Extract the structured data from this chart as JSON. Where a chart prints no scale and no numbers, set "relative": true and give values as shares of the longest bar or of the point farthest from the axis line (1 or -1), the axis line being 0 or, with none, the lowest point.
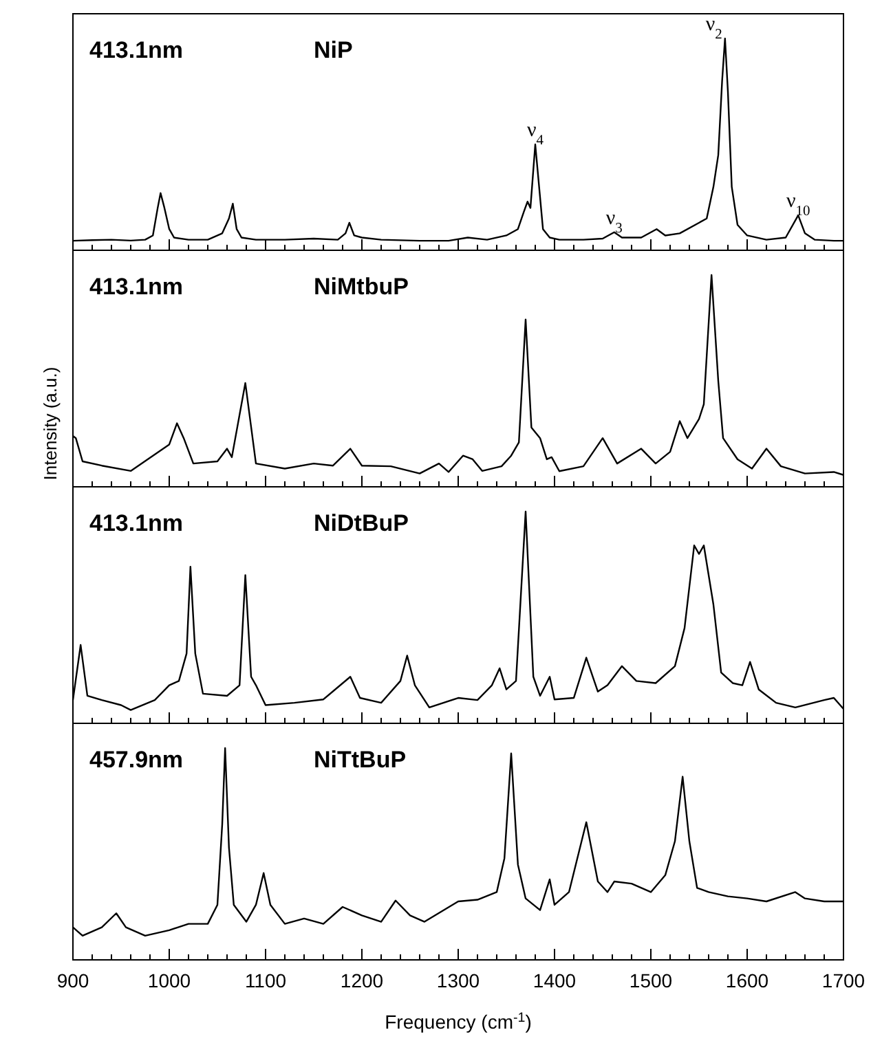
{
  "chart_data": [
    {
      "type": "line",
      "relative": true,
      "tick_labels": false,
      "xlim": [
        900,
        1700
      ],
      "xticks": [
        900,
        {
          "value": 920,
          "label": null
        },
        {
          "value": 940,
          "label": null
        },
        {
          "value": 960,
          "label": null
        },
        {
          "value": 980,
          "label": null
        },
        1000,
        {
          "value": 1020,
          "label": null
        },
        {
          "value": 1040,
          "label": null
        },
        {
          "value": 1060,
          "label": null
        },
        {
          "value": 1080,
          "label": null
        },
        1100,
        {
          "value": 1120,
          "label": null
        },
        {
          "value": 1140,
          "label": null
        },
        {
          "value": 1160,
          "label": null
        },
        {
          "value": 1180,
          "label": null
        },
        1200,
        {
          "value": 1220,
          "label": null
        },
        {
          "value": 1240,
          "label": null
        },
        {
          "value": 1260,
          "label": null
        },
        {
          "value": 1280,
          "label": null
        },
        1300,
        {
          "value": 1320,
          "label": null
        },
        {
          "value": 1340,
          "label": null
        },
        {
          "value": 1360,
          "label": null
        },
        {
          "value": 1380,
          "label": null
        },
        1400,
        {
          "value": 1420,
          "label": null
        },
        {
          "value": 1440,
          "label": null
        },
        {
          "value": 1460,
          "label": null
        },
        {
          "value": 1480,
          "label": null
        },
        1500,
        {
          "value": 1520,
          "label": null
        },
        {
          "value": 1540,
          "label": null
        },
        {
          "value": 1560,
          "label": null
        },
        {
          "value": 1580,
          "label": null
        },
        1600,
        {
          "value": 1620,
          "label": null
        },
        {
          "value": 1640,
          "label": null
        },
        {
          "value": 1660,
          "label": null
        },
        {
          "value": 1680,
          "label": null
        },
        1700
      ],
      "annotations": [
        "413.1nm",
        "NiP",
        {
          "text": "ν$_{4}$",
          "x": 1380,
          "y": 0.5
        },
        {
          "text": "ν$_{3}$",
          "x": 1462,
          "y": 0.085
        },
        {
          "text": "ν$_{2}$",
          "x": 1577,
          "y": 1
        },
        {
          "text": "ν$_{10}$",
          "x": 1653,
          "y": 0.165
        }
      ],
      "x": [
        900,
        920,
        940,
        960,
        975,
        983,
        988,
        991,
        995,
        1000,
        1005,
        1020,
        1040,
        1055,
        1062,
        1066,
        1070,
        1075,
        1090,
        1120,
        1150,
        1175,
        1183,
        1187,
        1192,
        1200,
        1220,
        1260,
        1290,
        1310,
        1330,
        1350,
        1362,
        1368,
        1372,
        1375,
        1380,
        1384,
        1388,
        1395,
        1405,
        1430,
        1450,
        1462,
        1470,
        1490,
        1506,
        1515,
        1530,
        1550,
        1558,
        1565,
        1570,
        1574,
        1577,
        1580,
        1584,
        1590,
        1600,
        1620,
        1640,
        1653,
        1660,
        1670,
        1690,
        1700
      ],
      "series": [
        {
          "color": "#000000",
          "values": [
            0.045,
            0.048,
            0.05,
            0.046,
            0.05,
            0.07,
            0.2,
            0.27,
            0.2,
            0.1,
            0.06,
            0.05,
            0.05,
            0.08,
            0.15,
            0.22,
            0.1,
            0.06,
            0.05,
            0.05,
            0.055,
            0.05,
            0.08,
            0.13,
            0.07,
            0.06,
            0.05,
            0.045,
            0.045,
            0.06,
            0.05,
            0.07,
            0.1,
            0.18,
            0.23,
            0.2,
            0.5,
            0.3,
            0.1,
            0.06,
            0.05,
            0.05,
            0.055,
            0.085,
            0.06,
            0.06,
            0.1,
            0.07,
            0.08,
            0.13,
            0.15,
            0.3,
            0.45,
            0.8,
            1,
            0.75,
            0.3,
            0.12,
            0.07,
            0.05,
            0.06,
            0.165,
            0.08,
            0.05,
            0.045,
            0.045
          ]
        }
      ]
    },
    {
      "type": "line",
      "relative": true,
      "tick_labels": false,
      "xlim": [
        900,
        1700
      ],
      "xticks": [
        900,
        {
          "value": 920,
          "label": null
        },
        {
          "value": 940,
          "label": null
        },
        {
          "value": 960,
          "label": null
        },
        {
          "value": 980,
          "label": null
        },
        1000,
        {
          "value": 1020,
          "label": null
        },
        {
          "value": 1040,
          "label": null
        },
        {
          "value": 1060,
          "label": null
        },
        {
          "value": 1080,
          "label": null
        },
        1100,
        {
          "value": 1120,
          "label": null
        },
        {
          "value": 1140,
          "label": null
        },
        {
          "value": 1160,
          "label": null
        },
        {
          "value": 1180,
          "label": null
        },
        1200,
        {
          "value": 1220,
          "label": null
        },
        {
          "value": 1240,
          "label": null
        },
        {
          "value": 1260,
          "label": null
        },
        {
          "value": 1280,
          "label": null
        },
        1300,
        {
          "value": 1320,
          "label": null
        },
        {
          "value": 1340,
          "label": null
        },
        {
          "value": 1360,
          "label": null
        },
        {
          "value": 1380,
          "label": null
        },
        1400,
        {
          "value": 1420,
          "label": null
        },
        {
          "value": 1440,
          "label": null
        },
        {
          "value": 1460,
          "label": null
        },
        {
          "value": 1480,
          "label": null
        },
        1500,
        {
          "value": 1520,
          "label": null
        },
        {
          "value": 1540,
          "label": null
        },
        {
          "value": 1560,
          "label": null
        },
        {
          "value": 1580,
          "label": null
        },
        1600,
        {
          "value": 1620,
          "label": null
        },
        {
          "value": 1640,
          "label": null
        },
        {
          "value": 1660,
          "label": null
        },
        {
          "value": 1680,
          "label": null
        },
        1700
      ],
      "ylabel": "Intensity (a.u.)",
      "annotations": [
        "413.1nm",
        "NiMtbuP"
      ],
      "x": [
        900,
        903,
        910,
        930,
        960,
        1000,
        1008,
        1015,
        1025,
        1050,
        1060,
        1065,
        1079,
        1090,
        1120,
        1150,
        1170,
        1188,
        1200,
        1230,
        1260,
        1280,
        1290,
        1305,
        1315,
        1325,
        1345,
        1355,
        1363,
        1370,
        1376,
        1385,
        1392,
        1397,
        1405,
        1430,
        1450,
        1465,
        1490,
        1505,
        1520,
        1530,
        1538,
        1550,
        1555,
        1563,
        1570,
        1575,
        1590,
        1605,
        1620,
        1635,
        1660,
        1690,
        1700
      ],
      "series": [
        {
          "color": "#000000",
          "values": [
            0.24,
            0.23,
            0.12,
            0.1,
            0.075,
            0.2,
            0.3,
            0.23,
            0.11,
            0.12,
            0.18,
            0.14,
            0.49,
            0.11,
            0.086,
            0.11,
            0.1,
            0.18,
            0.1,
            0.097,
            0.063,
            0.11,
            0.07,
            0.147,
            0.13,
            0.075,
            0.097,
            0.147,
            0.21,
            0.79,
            0.28,
            0.23,
            0.13,
            0.14,
            0.074,
            0.097,
            0.23,
            0.11,
            0.18,
            0.11,
            0.165,
            0.31,
            0.23,
            0.32,
            0.39,
            1,
            0.5,
            0.23,
            0.13,
            0.086,
            0.18,
            0.097,
            0.063,
            0.07,
            0.056
          ]
        }
      ]
    },
    {
      "type": "line",
      "relative": true,
      "tick_labels": false,
      "xlim": [
        900,
        1700
      ],
      "xticks": [
        900,
        {
          "value": 920,
          "label": null
        },
        {
          "value": 940,
          "label": null
        },
        {
          "value": 960,
          "label": null
        },
        {
          "value": 980,
          "label": null
        },
        1000,
        {
          "value": 1020,
          "label": null
        },
        {
          "value": 1040,
          "label": null
        },
        {
          "value": 1060,
          "label": null
        },
        {
          "value": 1080,
          "label": null
        },
        1100,
        {
          "value": 1120,
          "label": null
        },
        {
          "value": 1140,
          "label": null
        },
        {
          "value": 1160,
          "label": null
        },
        {
          "value": 1180,
          "label": null
        },
        1200,
        {
          "value": 1220,
          "label": null
        },
        {
          "value": 1240,
          "label": null
        },
        {
          "value": 1260,
          "label": null
        },
        {
          "value": 1280,
          "label": null
        },
        1300,
        {
          "value": 1320,
          "label": null
        },
        {
          "value": 1340,
          "label": null
        },
        {
          "value": 1360,
          "label": null
        },
        {
          "value": 1380,
          "label": null
        },
        1400,
        {
          "value": 1420,
          "label": null
        },
        {
          "value": 1440,
          "label": null
        },
        {
          "value": 1460,
          "label": null
        },
        {
          "value": 1480,
          "label": null
        },
        1500,
        {
          "value": 1520,
          "label": null
        },
        {
          "value": 1540,
          "label": null
        },
        {
          "value": 1560,
          "label": null
        },
        {
          "value": 1580,
          "label": null
        },
        1600,
        {
          "value": 1620,
          "label": null
        },
        {
          "value": 1640,
          "label": null
        },
        {
          "value": 1660,
          "label": null
        },
        {
          "value": 1680,
          "label": null
        },
        1700
      ],
      "annotations": [
        "413.1nm",
        "NiDtBuP"
      ],
      "x": [
        900,
        908,
        915,
        930,
        950,
        960,
        985,
        1000,
        1010,
        1018,
        1022,
        1027,
        1035,
        1060,
        1073,
        1079,
        1085,
        1090,
        1100,
        1130,
        1160,
        1188,
        1198,
        1220,
        1240,
        1247,
        1255,
        1270,
        1300,
        1320,
        1335,
        1343,
        1350,
        1360,
        1370,
        1378,
        1385,
        1395,
        1400,
        1420,
        1433,
        1445,
        1455,
        1470,
        1485,
        1505,
        1525,
        1535,
        1545,
        1550,
        1555,
        1565,
        1573,
        1585,
        1595,
        1603,
        1612,
        1630,
        1650,
        1680,
        1690,
        1700
      ],
      "series": [
        {
          "color": "#000000",
          "values": [
            0.11,
            0.37,
            0.13,
            0.11,
            0.086,
            0.063,
            0.11,
            0.18,
            0.2,
            0.33,
            0.74,
            0.33,
            0.14,
            0.13,
            0.18,
            0.7,
            0.22,
            0.18,
            0.086,
            0.097,
            0.113,
            0.22,
            0.12,
            0.097,
            0.2,
            0.32,
            0.18,
            0.075,
            0.12,
            0.11,
            0.18,
            0.26,
            0.16,
            0.2,
            1,
            0.22,
            0.13,
            0.22,
            0.113,
            0.12,
            0.31,
            0.15,
            0.18,
            0.27,
            0.2,
            0.19,
            0.27,
            0.45,
            0.84,
            0.8,
            0.84,
            0.56,
            0.24,
            0.19,
            0.18,
            0.29,
            0.16,
            0.097,
            0.075,
            0.11,
            0.12,
            0.068
          ]
        }
      ]
    },
    {
      "type": "line",
      "relative": true,
      "tick_labels": "x",
      "xlabel": "Frequency (cm$^{-1}$)",
      "xlim": [
        900,
        1700
      ],
      "xticks": [
        900,
        {
          "value": 920,
          "label": null
        },
        {
          "value": 940,
          "label": null
        },
        {
          "value": 960,
          "label": null
        },
        {
          "value": 980,
          "label": null
        },
        1000,
        {
          "value": 1020,
          "label": null
        },
        {
          "value": 1040,
          "label": null
        },
        {
          "value": 1060,
          "label": null
        },
        {
          "value": 1080,
          "label": null
        },
        1100,
        {
          "value": 1120,
          "label": null
        },
        {
          "value": 1140,
          "label": null
        },
        {
          "value": 1160,
          "label": null
        },
        {
          "value": 1180,
          "label": null
        },
        1200,
        {
          "value": 1220,
          "label": null
        },
        {
          "value": 1240,
          "label": null
        },
        {
          "value": 1260,
          "label": null
        },
        {
          "value": 1280,
          "label": null
        },
        1300,
        {
          "value": 1320,
          "label": null
        },
        {
          "value": 1340,
          "label": null
        },
        {
          "value": 1360,
          "label": null
        },
        {
          "value": 1380,
          "label": null
        },
        1400,
        {
          "value": 1420,
          "label": null
        },
        {
          "value": 1440,
          "label": null
        },
        {
          "value": 1460,
          "label": null
        },
        {
          "value": 1480,
          "label": null
        },
        1500,
        {
          "value": 1520,
          "label": null
        },
        {
          "value": 1540,
          "label": null
        },
        {
          "value": 1560,
          "label": null
        },
        {
          "value": 1580,
          "label": null
        },
        1600,
        {
          "value": 1620,
          "label": null
        },
        {
          "value": 1640,
          "label": null
        },
        {
          "value": 1660,
          "label": null
        },
        {
          "value": 1680,
          "label": null
        },
        1700
      ],
      "annotations": [
        "457.9nm",
        "NiTtBuP"
      ],
      "x": [
        900,
        910,
        930,
        945,
        955,
        975,
        1000,
        1020,
        1040,
        1050,
        1055,
        1058,
        1062,
        1067,
        1080,
        1090,
        1098,
        1105,
        1120,
        1140,
        1160,
        1180,
        1200,
        1220,
        1235,
        1250,
        1265,
        1300,
        1320,
        1340,
        1348,
        1355,
        1362,
        1370,
        1385,
        1395,
        1400,
        1415,
        1433,
        1445,
        1455,
        1462,
        1480,
        1500,
        1515,
        1525,
        1533,
        1540,
        1548,
        1560,
        1580,
        1600,
        1620,
        1650,
        1660,
        1680,
        1700
      ],
      "series": [
        {
          "color": "#000000",
          "values": [
            0.154,
            0.114,
            0.154,
            0.22,
            0.154,
            0.114,
            0.14,
            0.17,
            0.17,
            0.26,
            0.64,
            1,
            0.53,
            0.26,
            0.18,
            0.26,
            0.41,
            0.26,
            0.17,
            0.195,
            0.17,
            0.25,
            0.21,
            0.18,
            0.28,
            0.21,
            0.18,
            0.276,
            0.284,
            0.32,
            0.48,
            0.975,
            0.45,
            0.29,
            0.235,
            0.38,
            0.26,
            0.32,
            0.65,
            0.37,
            0.32,
            0.37,
            0.36,
            0.32,
            0.4,
            0.56,
            0.865,
            0.56,
            0.34,
            0.32,
            0.3,
            0.29,
            0.276,
            0.32,
            0.29,
            0.276,
            0.276
          ]
        }
      ]
    }
  ]
}
